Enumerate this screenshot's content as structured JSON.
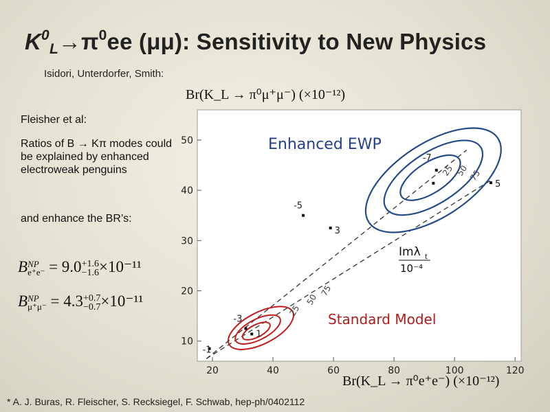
{
  "slide": {
    "title_part1": "K",
    "title_sup1": "0",
    "title_sub1": "L",
    "title_arrow": "→",
    "title_pi": "π",
    "title_sup2": "0",
    "title_part2": "ee (",
    "title_mumu": "μμ",
    "title_part3": "): Sensitivity to New Physics",
    "authors": "Isidori, Unterdorfer, Smith:",
    "cite": "Fleisher et al:",
    "para1": "Ratios of B → Kπ modes could be explained by enhanced electroweak penguins",
    "para2": "and enhance the BR’s:",
    "footnote": "* A. J. Buras, R. Fleischer, S. Recksiegel, F. Schwab, hep-ph/0402112"
  },
  "formulas": {
    "f1": {
      "sym": "B",
      "sup": "NP",
      "sub": "e⁺e⁻",
      "value": "= 9.0",
      "up": "+1.6",
      "down": "−1.6",
      "tail": "×10⁻¹¹"
    },
    "f2": {
      "sym": "B",
      "sup": "NP",
      "sub": "μ⁺μ⁻",
      "value": "= 4.3",
      "up": "+0.7",
      "down": "−0.7",
      "tail": "×10⁻¹¹"
    }
  },
  "plot_labels": {
    "y_title": "Br(K_L → π⁰μ⁺μ⁻)  (×10⁻¹²)",
    "x_title": "Br(K_L → π⁰e⁺e⁻)  (×10⁻¹²)"
  },
  "chart_data": {
    "type": "scatter",
    "xlim": [
      15,
      122
    ],
    "ylim": [
      6,
      56
    ],
    "x_ticks": [
      20,
      40,
      60,
      80,
      100,
      120
    ],
    "y_ticks": [
      10,
      20,
      30,
      40,
      50
    ],
    "x_tick_labels": [
      "20",
      "40",
      "60",
      "80",
      "100",
      "120"
    ],
    "y_tick_labels": [
      "10",
      "20",
      "30",
      "40",
      "50"
    ],
    "region_labels": [
      "Enhanced EWP",
      "Standard Model"
    ],
    "side_label_top": "Imλ",
    "side_label_sub": "t",
    "side_label_bottom": "10⁻⁴",
    "points": [
      {
        "x": 94,
        "y": 44,
        "label": "-7"
      },
      {
        "x": 112,
        "y": 41.5,
        "label": "5"
      },
      {
        "x": 50,
        "y": 35,
        "label": "-5"
      },
      {
        "x": 59,
        "y": 32.5,
        "label": "3"
      },
      {
        "x": 31,
        "y": 12.5,
        "label": "-3"
      },
      {
        "x": 19,
        "y": 8.5,
        "label": "-1"
      },
      {
        "x": 33,
        "y": 11.4,
        "label": "1"
      }
    ],
    "ewp_contour_labels": [
      "25",
      "50",
      "75"
    ],
    "sm_contour_labels": [
      "25",
      "50",
      "75"
    ],
    "colors": {
      "ewp": "#234a8a",
      "sm": "#c01d1d",
      "text_ewp": "#23418a",
      "text_sm": "#b21a1a"
    }
  }
}
